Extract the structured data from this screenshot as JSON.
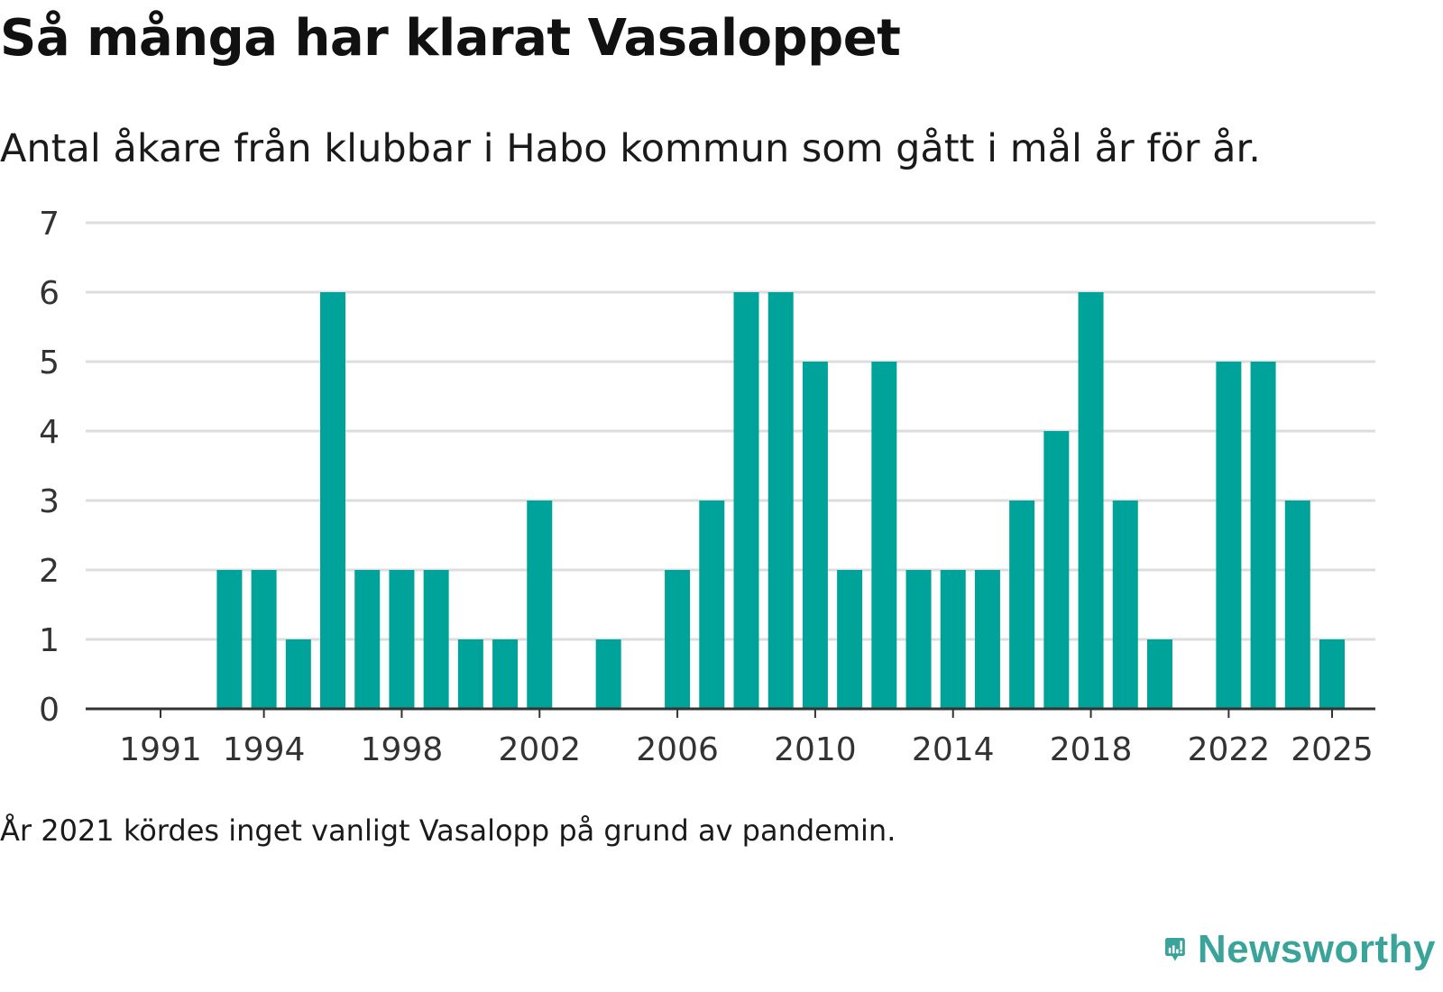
{
  "title": "Så många har klarat Vasaloppet",
  "subtitle": "Antal åkare från klubbar i Habo kommun som gått i mål år för år.",
  "footnote": "År 2021 kördes inget vanligt Vasalopp på grund av pandemin.",
  "brand": {
    "name": "Newsworthy"
  },
  "colors": {
    "bar": "#00a39a",
    "grid": "#dddddd",
    "axis": "#333333",
    "brand": "#3aa39a"
  },
  "chart_data": {
    "type": "bar",
    "title": "Så många har klarat Vasaloppet",
    "subtitle": "Antal åkare från klubbar i Habo kommun som gått i mål år för år.",
    "xlabel": "",
    "ylabel": "",
    "ylim": [
      0,
      7
    ],
    "yticks": [
      0,
      1,
      2,
      3,
      4,
      5,
      6,
      7
    ],
    "xtick_labels": [
      "1991",
      "1994",
      "1998",
      "2002",
      "2006",
      "2010",
      "2014",
      "2018",
      "2022",
      "2025"
    ],
    "grid": true,
    "categories": [
      1991,
      1992,
      1993,
      1994,
      1995,
      1996,
      1997,
      1998,
      1999,
      2000,
      2001,
      2002,
      2003,
      2004,
      2005,
      2006,
      2007,
      2008,
      2009,
      2010,
      2011,
      2012,
      2013,
      2014,
      2015,
      2016,
      2017,
      2018,
      2019,
      2020,
      2021,
      2022,
      2023,
      2024,
      2025
    ],
    "values": [
      0,
      0,
      2,
      2,
      1,
      6,
      2,
      2,
      2,
      1,
      1,
      3,
      0,
      1,
      0,
      2,
      3,
      6,
      6,
      5,
      2,
      5,
      2,
      2,
      2,
      3,
      4,
      6,
      3,
      1,
      0,
      5,
      5,
      3,
      1
    ]
  }
}
